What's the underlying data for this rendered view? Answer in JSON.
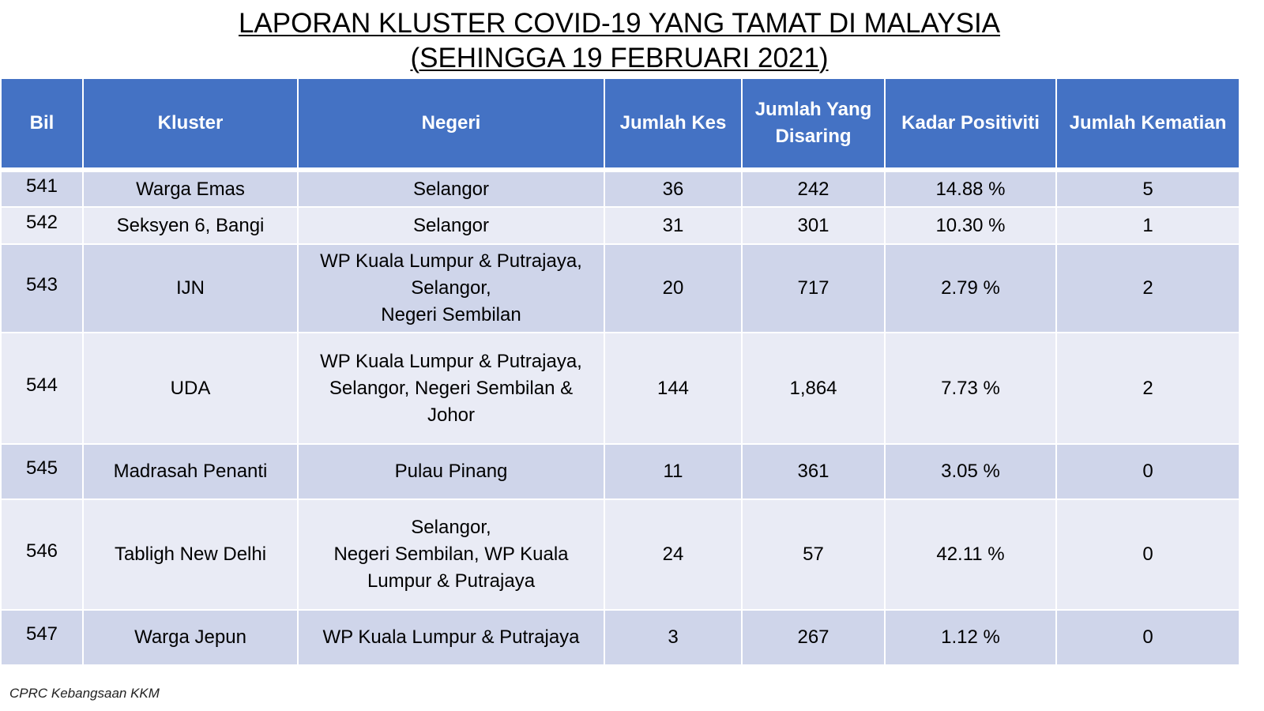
{
  "title": {
    "line1": "LAPORAN KLUSTER COVID-19 YANG TAMAT DI MALAYSIA",
    "line2": "(SEHINGGA 19 FEBRUARI 2021)"
  },
  "table": {
    "headers": {
      "bil": "Bil",
      "kluster": "Kluster",
      "negeri": "Negeri",
      "jumlah_kes": "Jumlah Kes",
      "jumlah_disaring_l1": "Jumlah Yang",
      "jumlah_disaring_l2": "Disaring",
      "kadar_positiviti": "Kadar Positiviti",
      "jumlah_kematian": "Jumlah Kematian"
    },
    "rows": [
      {
        "bil": "541",
        "kluster": "Warga Emas",
        "negeri": [
          "Selangor"
        ],
        "kes": "36",
        "disaring": "242",
        "positiviti": "14.88 %",
        "kematian": "5"
      },
      {
        "bil": "542",
        "kluster": "Seksyen 6, Bangi",
        "negeri": [
          "Selangor"
        ],
        "kes": "31",
        "disaring": "301",
        "positiviti": "10.30 %",
        "kematian": "1"
      },
      {
        "bil": "543",
        "kluster": "IJN",
        "negeri": [
          "WP Kuala Lumpur & Putrajaya,",
          "Selangor,",
          "Negeri Sembilan"
        ],
        "kes": "20",
        "disaring": "717",
        "positiviti": "2.79 %",
        "kematian": "2"
      },
      {
        "bil": "544",
        "kluster": "UDA",
        "negeri": [
          "WP Kuala Lumpur & Putrajaya,",
          "Selangor, Negeri Sembilan &",
          "Johor"
        ],
        "kes": "144",
        "disaring": "1,864",
        "positiviti": "7.73 %",
        "kematian": "2"
      },
      {
        "bil": "545",
        "kluster": "Madrasah Penanti",
        "negeri": [
          "Pulau Pinang"
        ],
        "kes": "11",
        "disaring": "361",
        "positiviti": "3.05 %",
        "kematian": "0"
      },
      {
        "bil": "546",
        "kluster": "Tabligh New Delhi",
        "negeri": [
          "Selangor,",
          "Negeri Sembilan, WP Kuala",
          "Lumpur & Putrajaya"
        ],
        "kes": "24",
        "disaring": "57",
        "positiviti": "42.11 %",
        "kematian": "0"
      },
      {
        "bil": "547",
        "kluster": "Warga Jepun",
        "negeri": [
          "WP Kuala Lumpur & Putrajaya"
        ],
        "kes": "3",
        "disaring": "267",
        "positiviti": "1.12 %",
        "kematian": "0"
      }
    ]
  },
  "footer": "CPRC Kebangsaan KKM",
  "colors": {
    "header_bg": "#4472c4",
    "row_dark": "#cfd5ea",
    "row_light": "#e9ebf5"
  }
}
